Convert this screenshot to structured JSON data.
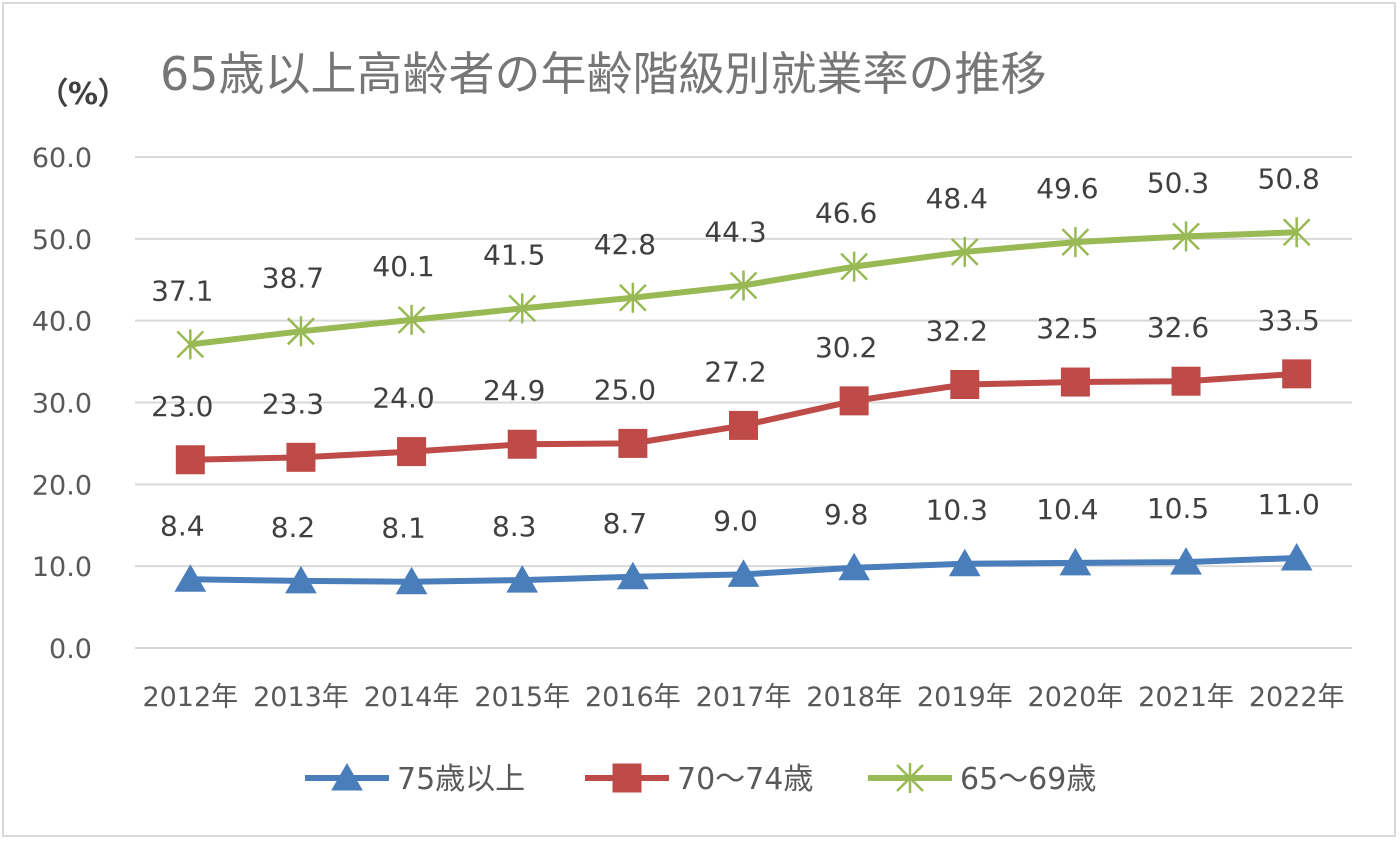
{
  "chart_data": {
    "type": "line",
    "title": "65歳以上高齢者の年齢階級別就業率の推移",
    "ylabel": "（%）",
    "xlabel": "",
    "ylim": [
      0,
      60
    ],
    "yticks": [
      "0.0",
      "10.0",
      "20.0",
      "30.0",
      "40.0",
      "50.0",
      "60.0"
    ],
    "ytick_values": [
      0,
      10,
      20,
      30,
      40,
      50,
      60
    ],
    "grid": true,
    "legend_position": "bottom",
    "categories": [
      "2012年",
      "2013年",
      "2014年",
      "2015年",
      "2016年",
      "2017年",
      "2018年",
      "2019年",
      "2020年",
      "2021年",
      "2022年"
    ],
    "series": [
      {
        "name": "75歳以上",
        "color": "#4a7ebb",
        "marker": "triangle",
        "values": [
          8.4,
          8.2,
          8.1,
          8.3,
          8.7,
          9.0,
          9.8,
          10.3,
          10.4,
          10.5,
          11.0
        ],
        "labels": [
          "8.4",
          "8.2",
          "8.1",
          "8.3",
          "8.7",
          "9.0",
          "9.8",
          "10.3",
          "10.4",
          "10.5",
          "11.0"
        ]
      },
      {
        "name": "70～74歳",
        "color": "#be4b48",
        "marker": "square",
        "values": [
          23.0,
          23.3,
          24.0,
          24.9,
          25.0,
          27.2,
          30.2,
          32.2,
          32.5,
          32.6,
          33.5
        ],
        "labels": [
          "23.0",
          "23.3",
          "24.0",
          "24.9",
          "25.0",
          "27.2",
          "30.2",
          "32.2",
          "32.5",
          "32.6",
          "33.5"
        ]
      },
      {
        "name": "65～69歳",
        "color": "#98b954",
        "marker": "asterisk",
        "values": [
          37.1,
          38.7,
          40.1,
          41.5,
          42.8,
          44.3,
          46.6,
          48.4,
          49.6,
          50.3,
          50.8
        ],
        "labels": [
          "37.1",
          "38.7",
          "40.1",
          "41.5",
          "42.8",
          "44.3",
          "46.6",
          "48.4",
          "49.6",
          "50.3",
          "50.8"
        ]
      }
    ]
  }
}
